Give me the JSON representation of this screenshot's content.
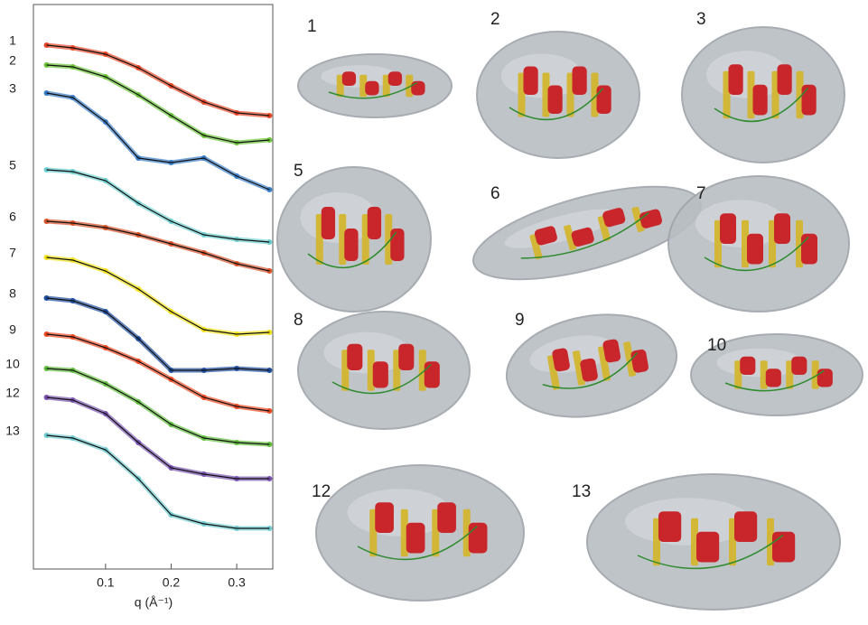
{
  "chart_data": {
    "type": "line",
    "xlabel": "q (Å⁻¹)",
    "x": [
      0.01,
      0.05,
      0.1,
      0.15,
      0.2,
      0.25,
      0.3,
      0.35
    ],
    "xlim": [
      -0.01,
      0.355
    ],
    "xticks": [
      0.1,
      0.2,
      0.3
    ],
    "ylim": [
      0,
      625
    ],
    "series": [
      {
        "name": "1",
        "color": "#e8482a",
        "values": [
          580,
          577,
          570,
          555,
          535,
          517,
          505,
          502
        ]
      },
      {
        "name": "2",
        "color": "#6cc43a",
        "values": [
          558,
          556,
          545,
          525,
          502,
          480,
          472,
          475
        ]
      },
      {
        "name": "3",
        "color": "#3b7ec8",
        "values": [
          527,
          522,
          495,
          455,
          450,
          455,
          435,
          420
        ]
      },
      {
        "name": "5",
        "color": "#6fcfd0",
        "values": [
          442,
          440,
          430,
          405,
          385,
          370,
          365,
          362
        ]
      },
      {
        "name": "6",
        "color": "#d9532b",
        "values": [
          385,
          383,
          378,
          370,
          360,
          350,
          338,
          330
        ]
      },
      {
        "name": "7",
        "color": "#f2e21c",
        "values": [
          345,
          342,
          330,
          310,
          285,
          265,
          260,
          262
        ]
      },
      {
        "name": "8",
        "color": "#1f4fa0",
        "values": [
          300,
          297,
          285,
          255,
          220,
          220,
          222,
          220
        ]
      },
      {
        "name": "9",
        "color": "#ef4a24",
        "values": [
          260,
          257,
          245,
          230,
          210,
          190,
          180,
          175
        ]
      },
      {
        "name": "10",
        "color": "#62bf3d",
        "values": [
          222,
          220,
          205,
          185,
          160,
          145,
          140,
          138
        ]
      },
      {
        "name": "12",
        "color": "#7b55b0",
        "values": [
          190,
          187,
          172,
          140,
          112,
          105,
          100,
          100
        ]
      },
      {
        "name": "13",
        "color": "#72cdd2",
        "values": [
          148,
          145,
          132,
          100,
          60,
          50,
          45,
          45
        ]
      }
    ]
  },
  "structures": [
    "1",
    "2",
    "3",
    "5",
    "6",
    "7",
    "8",
    "9",
    "10",
    "12",
    "13"
  ]
}
